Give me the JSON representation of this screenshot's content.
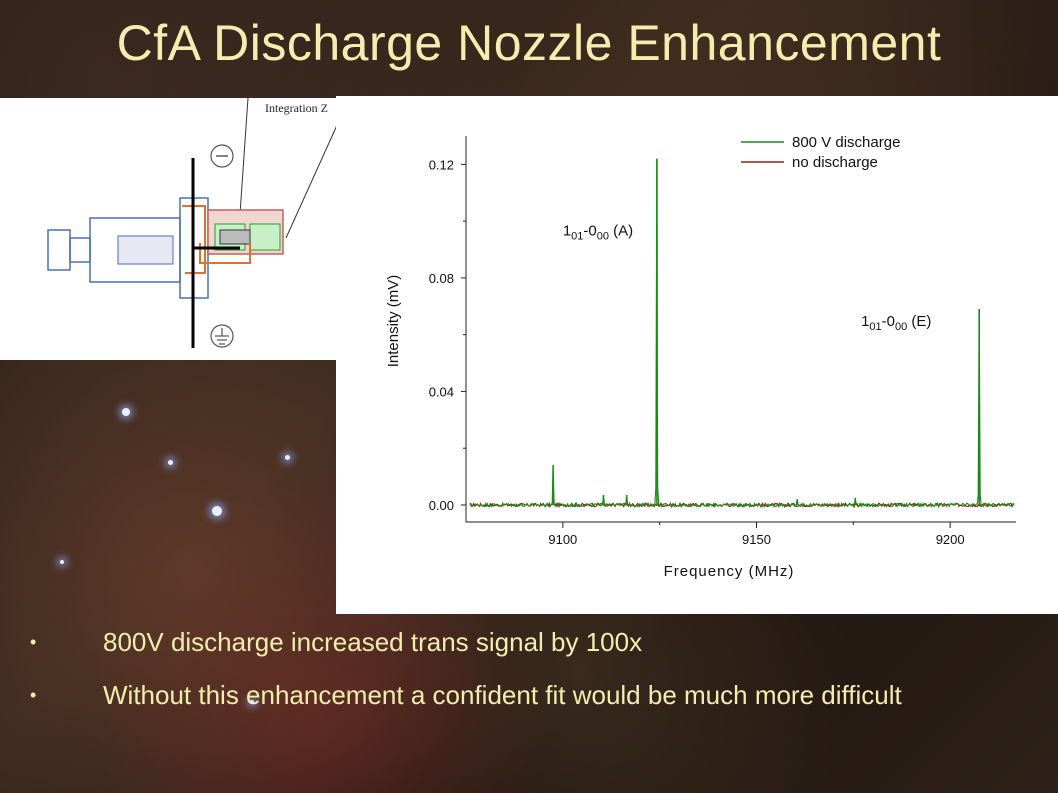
{
  "slide": {
    "title": "CfA Discharge Nozzle Enhancement",
    "bullets": [
      "800V discharge increased trans signal by 100x",
      "Without this enhancement a confident fit would be much more difficult"
    ],
    "diagram_label": "Integration Z"
  },
  "chart_data": {
    "type": "line",
    "xlabel": "Frequency (MHz)",
    "ylabel": "Intensity (mV)",
    "xlim": [
      9075,
      9217
    ],
    "ylim": [
      -0.006,
      0.13
    ],
    "x_ticks": [
      9100,
      9150,
      9200
    ],
    "y_ticks": [
      0.0,
      0.04,
      0.08,
      0.12
    ],
    "y_tick_labels": [
      "0.00",
      "0.04",
      "0.08",
      "0.12"
    ],
    "legend_position": "top-right",
    "grid": false,
    "series": [
      {
        "name": "800 V discharge",
        "color": "#1a8a1a",
        "baseline": 0.0,
        "peaks": [
          {
            "x": 9097.5,
            "y": 0.014
          },
          {
            "x": 9110.5,
            "y": 0.0035
          },
          {
            "x": 9116.5,
            "y": 0.0035
          },
          {
            "x": 9124.3,
            "y": 0.122
          },
          {
            "x": 9160.5,
            "y": 0.002
          },
          {
            "x": 9175.5,
            "y": 0.0025
          },
          {
            "x": 9207.5,
            "y": 0.069
          }
        ]
      },
      {
        "name": "no discharge",
        "color": "#9b1a1a",
        "baseline": 0.0,
        "peaks": []
      }
    ],
    "annotations": [
      {
        "main": "1",
        "sub1": "01",
        "mid": "-0",
        "sub2": "00",
        "tail": " (A)",
        "x": 9100,
        "y": 0.095
      },
      {
        "main": "1",
        "sub1": "01",
        "mid": "-0",
        "sub2": "00",
        "tail": " (E)",
        "x": 9177,
        "y": 0.063
      }
    ]
  }
}
